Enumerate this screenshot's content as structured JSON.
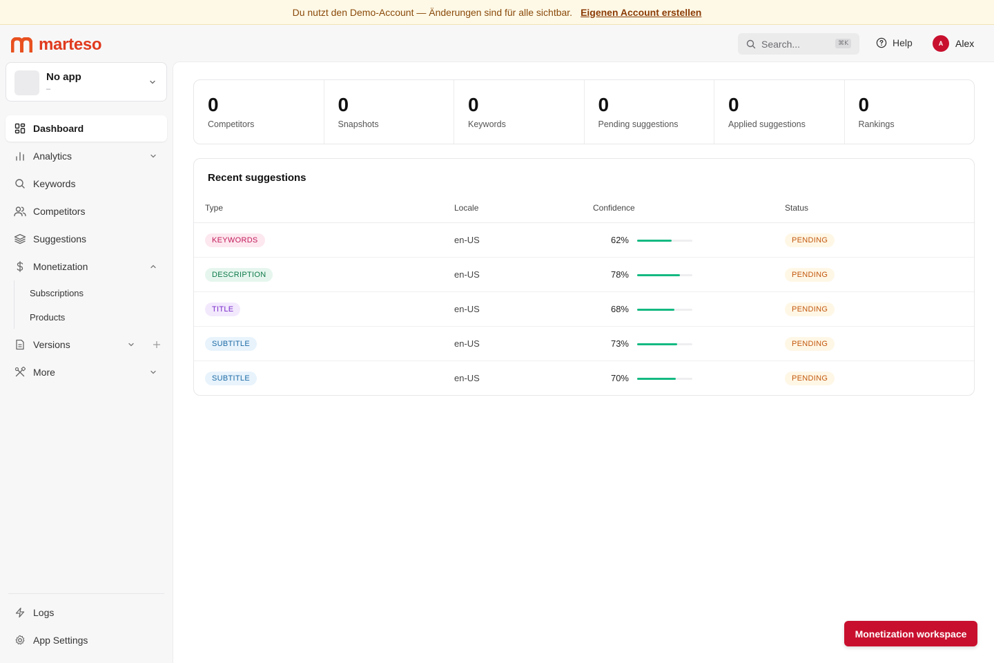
{
  "banner": {
    "text": "Du nutzt den Demo-Account — Änderungen sind für alle sichtbar.",
    "link": "Eigenen Account erstellen"
  },
  "brand": {
    "name": "marteso",
    "color": "#e03a1e"
  },
  "header": {
    "search_placeholder": "Search...",
    "search_shortcut": "⌘K",
    "help_label": "Help",
    "user_initial": "A",
    "user_name": "Alex"
  },
  "app_picker": {
    "name": "No app",
    "sub": "–"
  },
  "sidebar": {
    "items": [
      {
        "label": "Dashboard",
        "icon": "dashboard-icon",
        "active": true
      },
      {
        "label": "Analytics",
        "icon": "bar-chart-icon"
      },
      {
        "label": "Keywords",
        "icon": "search-icon"
      },
      {
        "label": "Competitors",
        "icon": "users-icon"
      },
      {
        "label": "Suggestions",
        "icon": "layers-icon"
      },
      {
        "label": "Monetization",
        "icon": "dollar-icon",
        "expanded": true
      },
      {
        "label": "Versions",
        "icon": "document-icon"
      },
      {
        "label": "More",
        "icon": "tools-icon"
      }
    ],
    "subitems": [
      "Subscriptions",
      "Products"
    ],
    "footer": [
      {
        "label": "Logs",
        "icon": "lightning-icon"
      },
      {
        "label": "App Settings",
        "icon": "gear-icon"
      }
    ]
  },
  "stats": [
    {
      "value": "0",
      "label": "Competitors"
    },
    {
      "value": "0",
      "label": "Snapshots"
    },
    {
      "value": "0",
      "label": "Keywords"
    },
    {
      "value": "0",
      "label": "Pending suggestions"
    },
    {
      "value": "0",
      "label": "Applied suggestions"
    },
    {
      "value": "0",
      "label": "Rankings"
    }
  ],
  "recent": {
    "title": "Recent suggestions",
    "columns": [
      "Type",
      "Locale",
      "Confidence",
      "Status"
    ],
    "rows": [
      {
        "type": "KEYWORDS",
        "type_color": "#c21a5a",
        "type_bg": "#fde8ef",
        "locale": "en-US",
        "confidence": "62%",
        "confidence_value": 0.62,
        "status": "PENDING"
      },
      {
        "type": "DESCRIPTION",
        "type_color": "#0f7a4a",
        "type_bg": "#e6f6ee",
        "locale": "en-US",
        "confidence": "78%",
        "confidence_value": 0.78,
        "status": "PENDING"
      },
      {
        "type": "TITLE",
        "type_color": "#7a2bc9",
        "type_bg": "#f3e9fd",
        "locale": "en-US",
        "confidence": "68%",
        "confidence_value": 0.68,
        "status": "PENDING"
      },
      {
        "type": "SUBTITLE",
        "type_color": "#1b6aa5",
        "type_bg": "#e8f3fc",
        "locale": "en-US",
        "confidence": "73%",
        "confidence_value": 0.73,
        "status": "PENDING"
      },
      {
        "type": "SUBTITLE",
        "type_color": "#1b6aa5",
        "type_bg": "#e8f3fc",
        "locale": "en-US",
        "confidence": "70%",
        "confidence_value": 0.7,
        "status": "PENDING"
      }
    ]
  },
  "fab_label": "Monetization workspace"
}
